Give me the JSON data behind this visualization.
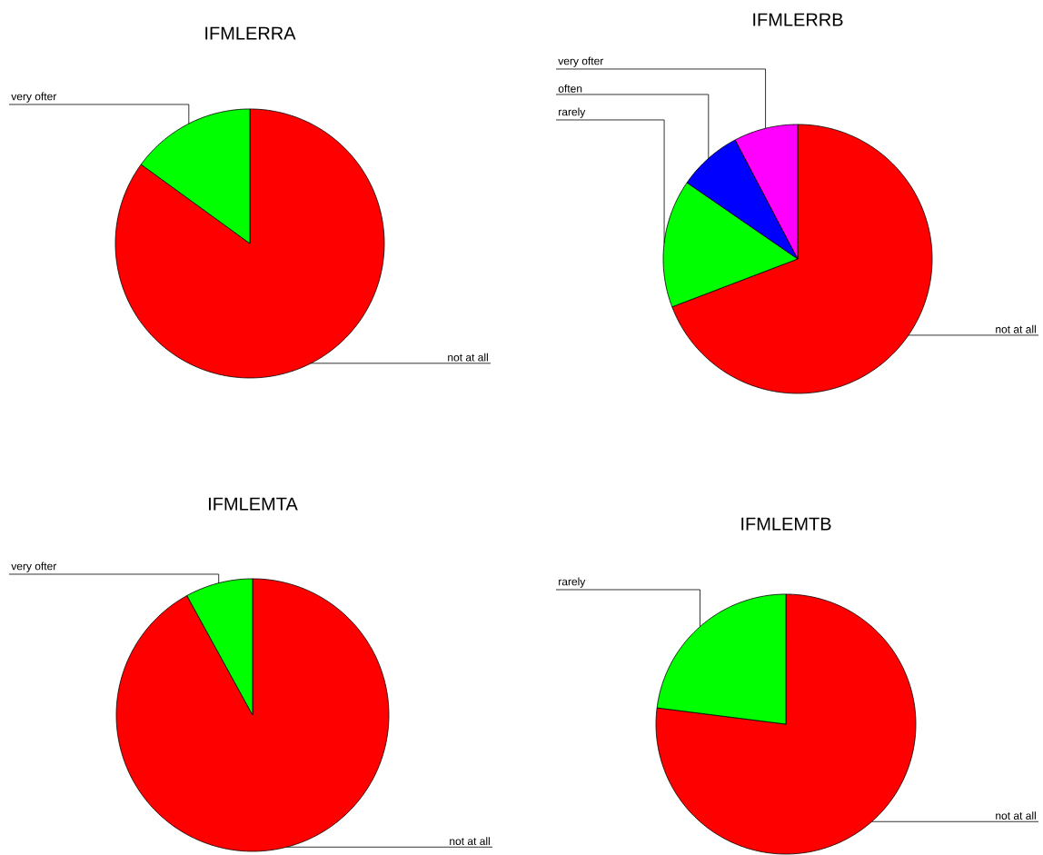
{
  "chart_data": [
    {
      "type": "pie",
      "title": "IFMLERRA",
      "categories": [
        "not at all",
        "very ofter"
      ],
      "values": [
        85,
        15
      ],
      "colors": [
        "#ff0000",
        "#00ff00"
      ]
    },
    {
      "type": "pie",
      "title": "IFMLERRB",
      "categories": [
        "not at all",
        "rarely",
        "often",
        "very ofter"
      ],
      "values": [
        69.2,
        15.4,
        7.7,
        7.7
      ],
      "colors": [
        "#ff0000",
        "#00ff00",
        "#0000ff",
        "#ff00ff"
      ]
    },
    {
      "type": "pie",
      "title": "IFMLEMTA",
      "categories": [
        "not at all",
        "very ofter"
      ],
      "values": [
        92,
        8
      ],
      "colors": [
        "#ff0000",
        "#00ff00"
      ]
    },
    {
      "type": "pie",
      "title": "IFMLEMTB",
      "categories": [
        "not at all",
        "rarely"
      ],
      "values": [
        77,
        23
      ],
      "colors": [
        "#ff0000",
        "#00ff00"
      ]
    }
  ]
}
